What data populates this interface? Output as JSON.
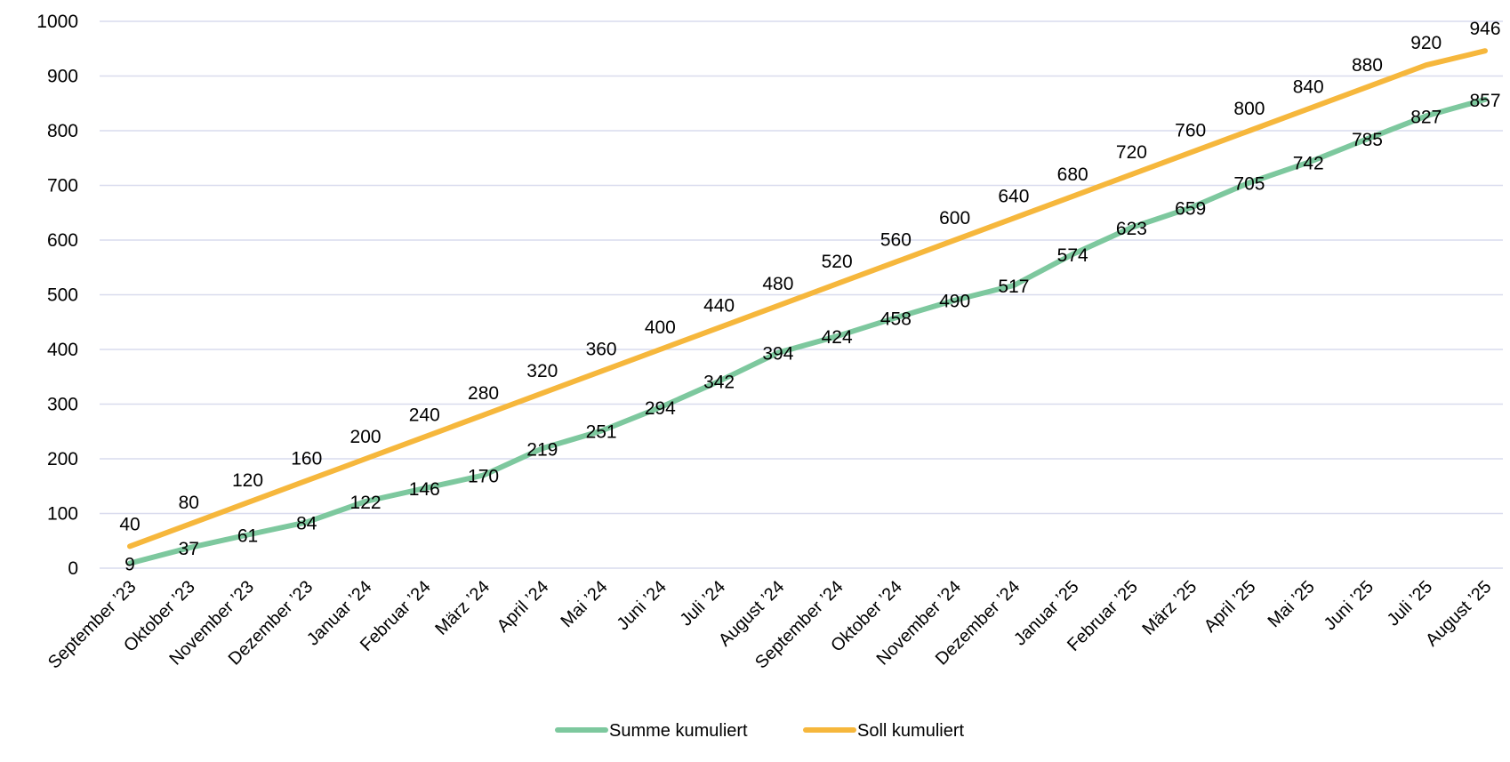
{
  "chart_data": {
    "type": "line",
    "categories": [
      "September ’23",
      "Oktober ’23",
      "November ’23",
      "Dezember ’23",
      "Januar ’24",
      "Februar ’24",
      "März ’24",
      "April ’24",
      "Mai ’24",
      "Juni ’24",
      "Juli ’24",
      "August ’24",
      "September ’24",
      "Oktober ’24",
      "November ’24",
      "Dezember ’24",
      "Januar ’25",
      "Februar ’25",
      "März ’25",
      "April ’25",
      "Mai ’25",
      "Juni ’25",
      "Juli ’25",
      "August ’25"
    ],
    "series": [
      {
        "name": "Summe kumuliert",
        "color": "#7dc89e",
        "values": [
          9,
          37,
          61,
          84,
          122,
          146,
          170,
          219,
          251,
          294,
          342,
          394,
          424,
          458,
          490,
          517,
          574,
          623,
          659,
          705,
          742,
          785,
          827,
          857
        ]
      },
      {
        "name": "Soll kumuliert",
        "color": "#f6b73c",
        "values": [
          40,
          80,
          120,
          160,
          200,
          240,
          280,
          320,
          360,
          400,
          440,
          480,
          520,
          560,
          600,
          640,
          680,
          720,
          760,
          800,
          840,
          880,
          920,
          946
        ]
      }
    ],
    "yticks": [
      0,
      100,
      200,
      300,
      400,
      500,
      600,
      700,
      800,
      900,
      1000
    ],
    "ylim": [
      0,
      1000
    ],
    "grid": true,
    "gridColor": "#d9dcee",
    "legend": "bottom"
  }
}
